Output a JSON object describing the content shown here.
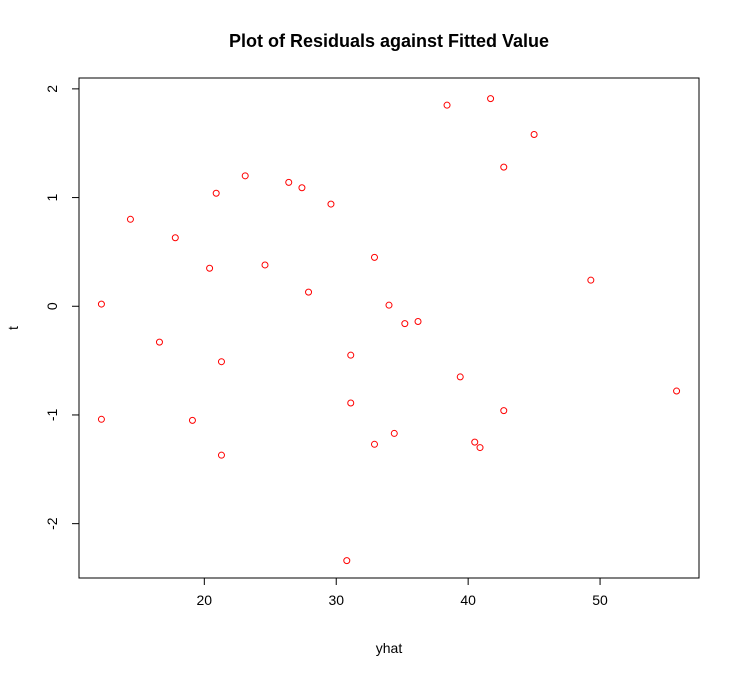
{
  "chart_data": {
    "type": "scatter",
    "title": "Plot of Residuals against Fitted Value",
    "xlabel": "yhat",
    "ylabel": "t",
    "xlim": [
      10.5,
      57.5
    ],
    "ylim": [
      -2.5,
      2.1
    ],
    "x_ticks": [
      20,
      30,
      40,
      50
    ],
    "y_ticks": [
      -2,
      -1,
      0,
      1,
      2
    ],
    "grid": false,
    "point_color": "#ff0000",
    "points": [
      {
        "x": 12.2,
        "y": 0.02
      },
      {
        "x": 12.2,
        "y": -1.04
      },
      {
        "x": 14.4,
        "y": 0.8
      },
      {
        "x": 16.6,
        "y": -0.33
      },
      {
        "x": 17.8,
        "y": 0.63
      },
      {
        "x": 19.1,
        "y": -1.05
      },
      {
        "x": 20.4,
        "y": 0.35
      },
      {
        "x": 20.9,
        "y": 1.04
      },
      {
        "x": 21.3,
        "y": -0.51
      },
      {
        "x": 21.3,
        "y": -1.37
      },
      {
        "x": 23.1,
        "y": 1.2
      },
      {
        "x": 24.6,
        "y": 0.38
      },
      {
        "x": 26.4,
        "y": 1.14
      },
      {
        "x": 27.4,
        "y": 1.09
      },
      {
        "x": 27.9,
        "y": 0.13
      },
      {
        "x": 29.6,
        "y": 0.94
      },
      {
        "x": 30.8,
        "y": -2.34
      },
      {
        "x": 31.1,
        "y": -0.45
      },
      {
        "x": 31.1,
        "y": -0.89
      },
      {
        "x": 32.9,
        "y": 0.45
      },
      {
        "x": 32.9,
        "y": -1.27
      },
      {
        "x": 34.0,
        "y": 0.01
      },
      {
        "x": 34.4,
        "y": -1.17
      },
      {
        "x": 35.2,
        "y": -0.16
      },
      {
        "x": 36.2,
        "y": -0.14
      },
      {
        "x": 38.4,
        "y": 1.85
      },
      {
        "x": 39.4,
        "y": -0.65
      },
      {
        "x": 40.5,
        "y": -1.25
      },
      {
        "x": 40.9,
        "y": -1.3
      },
      {
        "x": 41.7,
        "y": 1.91
      },
      {
        "x": 42.7,
        "y": 1.28
      },
      {
        "x": 42.7,
        "y": -0.96
      },
      {
        "x": 45.0,
        "y": 1.58
      },
      {
        "x": 49.3,
        "y": 0.24
      },
      {
        "x": 55.8,
        "y": -0.78
      }
    ]
  }
}
